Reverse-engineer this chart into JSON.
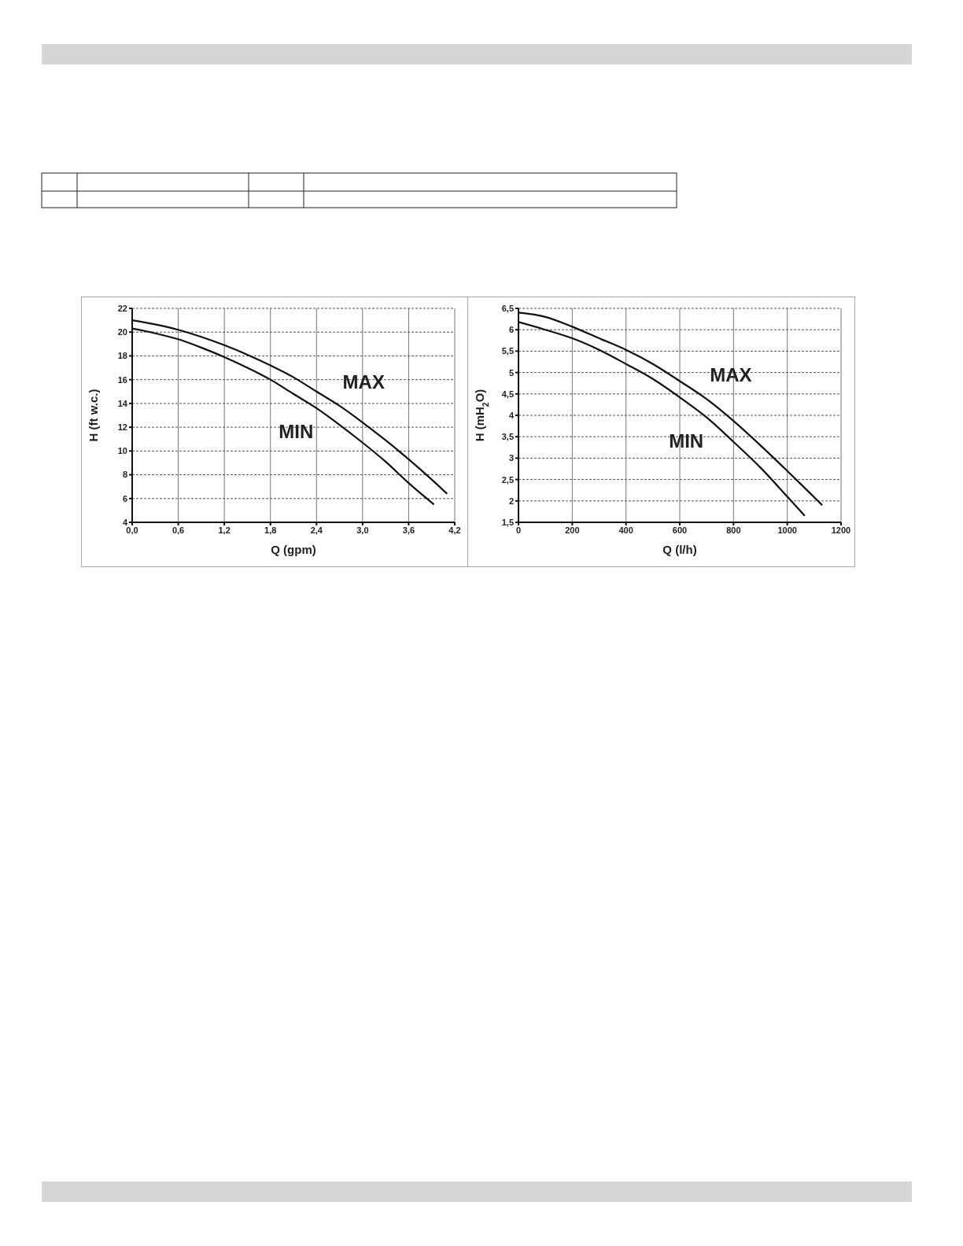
{
  "chart_data": [
    {
      "type": "line",
      "xlabel": "Q (gpm)",
      "ylabel": "H (ft w.c.)",
      "xlim": [
        0,
        4.2
      ],
      "ylim": [
        4,
        22
      ],
      "xticks": [
        {
          "value": 0,
          "label": "0,0"
        },
        {
          "value": 0.6,
          "label": "0,6"
        },
        {
          "value": 1.2,
          "label": "1,2"
        },
        {
          "value": 1.8,
          "label": "1,8"
        },
        {
          "value": 2.4,
          "label": "2,4"
        },
        {
          "value": 3.0,
          "label": "3,0"
        },
        {
          "value": 3.6,
          "label": "3,6"
        },
        {
          "value": 4.2,
          "label": "4,2"
        }
      ],
      "yticks": [
        4,
        6,
        8,
        10,
        12,
        14,
        16,
        18,
        20,
        22
      ],
      "grid": true,
      "marker": "none",
      "line_style": "solid",
      "series": [
        {
          "name": "MAX",
          "color": "#111111",
          "x": [
            0,
            0.3,
            0.6,
            0.9,
            1.2,
            1.5,
            1.8,
            2.1,
            2.4,
            2.7,
            3.0,
            3.3,
            3.6,
            3.9,
            4.1
          ],
          "values": [
            21.0,
            20.65,
            20.2,
            19.6,
            18.9,
            18.1,
            17.2,
            16.2,
            15.0,
            13.8,
            12.4,
            10.9,
            9.3,
            7.6,
            6.4
          ]
        },
        {
          "name": "MIN",
          "color": "#111111",
          "x": [
            0,
            0.3,
            0.6,
            0.9,
            1.2,
            1.5,
            1.8,
            2.1,
            2.4,
            2.7,
            3.0,
            3.3,
            3.6,
            3.93
          ],
          "values": [
            20.3,
            19.9,
            19.4,
            18.7,
            17.9,
            17.0,
            16.0,
            14.8,
            13.6,
            12.2,
            10.7,
            9.1,
            7.3,
            5.5
          ]
        }
      ]
    },
    {
      "type": "line",
      "xlabel": "Q (l/h)",
      "ylabel": "H (mH$_{2}$O)",
      "xlim": [
        0,
        1200
      ],
      "ylim": [
        1.5,
        6.5
      ],
      "xticks": [
        0,
        200,
        400,
        600,
        800,
        1000,
        1200
      ],
      "yticks": [
        {
          "value": 1.5,
          "label": "1,5"
        },
        2,
        {
          "value": 2.5,
          "label": "2,5"
        },
        3,
        {
          "value": 3.5,
          "label": "3,5"
        },
        4,
        {
          "value": 4.5,
          "label": "4,5"
        },
        5,
        {
          "value": 5.5,
          "label": "5,5"
        },
        6,
        {
          "value": 6.5,
          "label": "6,5"
        }
      ],
      "grid": true,
      "marker": "none",
      "line_style": "solid",
      "series": [
        {
          "name": "MAX",
          "color": "#111111",
          "x": [
            0,
            100,
            200,
            300,
            400,
            500,
            600,
            700,
            800,
            900,
            1000,
            1130
          ],
          "values": [
            6.4,
            6.3,
            6.07,
            5.8,
            5.53,
            5.2,
            4.8,
            4.38,
            3.87,
            3.3,
            2.7,
            1.9
          ]
        },
        {
          "name": "MIN",
          "color": "#111111",
          "x": [
            0,
            100,
            200,
            300,
            400,
            500,
            600,
            700,
            800,
            900,
            1000,
            1065
          ],
          "values": [
            6.18,
            6.0,
            5.8,
            5.53,
            5.2,
            4.85,
            4.42,
            3.95,
            3.38,
            2.78,
            2.1,
            1.65
          ]
        }
      ]
    }
  ]
}
